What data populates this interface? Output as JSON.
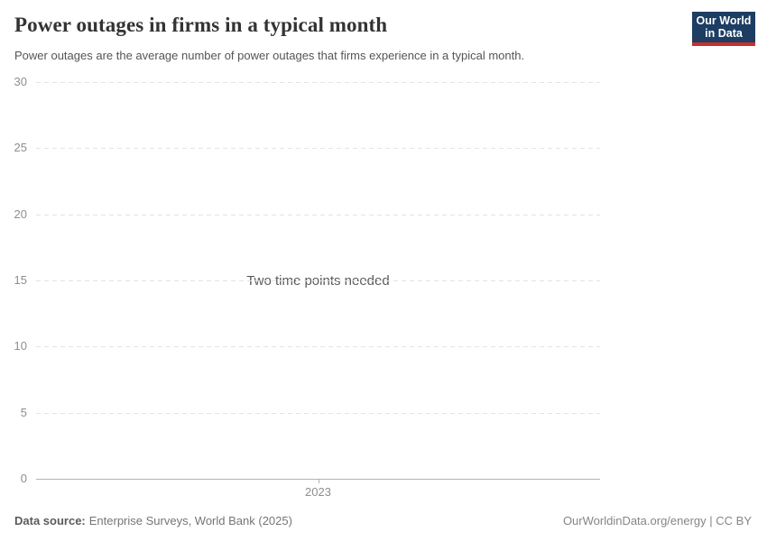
{
  "header": {
    "title": "Power outages in firms in a typical month",
    "subtitle": "Power outages are the average number of power outages that firms experience in a typical month.",
    "logo": {
      "line1": "Our World",
      "line2": "in Data",
      "background_color": "#1d3d63",
      "bar_color": "#c7302b"
    }
  },
  "chart_data": {
    "type": "line",
    "title": "Power outages in firms in a typical month",
    "subtitle": "Power outages are the average number of power outages that firms experience in a typical month.",
    "series": [],
    "message": "Two time points needed",
    "x_ticks": [
      "2023"
    ],
    "y_ticks": [
      0,
      5,
      10,
      15,
      20,
      25,
      30
    ],
    "ylim": [
      0,
      30
    ],
    "xlabel": "",
    "ylabel": "",
    "grid": "horizontal-dashed",
    "legend": "none",
    "colors": {
      "gridline": "#e3e3e3",
      "axis_baseline": "#b3b3b3",
      "tick_label": "#8e8e8e",
      "message_text": "#5b5b5b"
    }
  },
  "footer": {
    "source_label": "Data source:",
    "source_value": "Enterprise Surveys, World Bank (2025)",
    "credit": "OurWorldinData.org/energy | CC BY"
  }
}
